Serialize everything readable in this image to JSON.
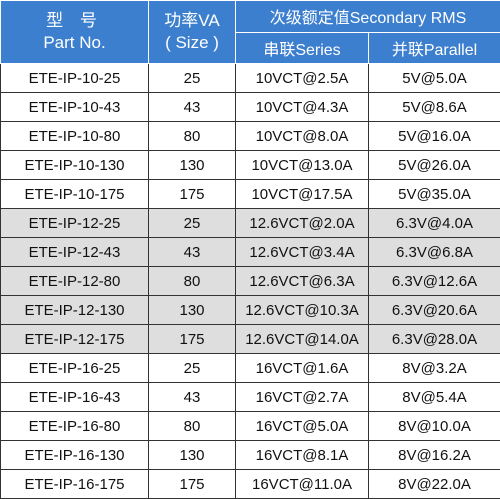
{
  "header": {
    "model_cn": "型  号",
    "model_en": "Part No.",
    "power_cn": "功率VA",
    "power_en": "( Size )",
    "secondary_title": "次级额定值Secondary RMS",
    "series_label": "串联Series",
    "parallel_label": "并联Parallel"
  },
  "rows": [
    {
      "part": "ETE-IP-10-25",
      "va": "25",
      "series": "10VCT@2.5A",
      "parallel": "5V@5.0A",
      "shaded": false
    },
    {
      "part": "ETE-IP-10-43",
      "va": "43",
      "series": "10VCT@4.3A",
      "parallel": "5V@8.6A",
      "shaded": false
    },
    {
      "part": "ETE-IP-10-80",
      "va": "80",
      "series": "10VCT@8.0A",
      "parallel": "5V@16.0A",
      "shaded": false
    },
    {
      "part": "ETE-IP-10-130",
      "va": "130",
      "series": "10VCT@13.0A",
      "parallel": "5V@26.0A",
      "shaded": false
    },
    {
      "part": "ETE-IP-10-175",
      "va": "175",
      "series": "10VCT@17.5A",
      "parallel": "5V@35.0A",
      "shaded": false
    },
    {
      "part": "ETE-IP-12-25",
      "va": "25",
      "series": "12.6VCT@2.0A",
      "parallel": "6.3V@4.0A",
      "shaded": true
    },
    {
      "part": "ETE-IP-12-43",
      "va": "43",
      "series": "12.6VCT@3.4A",
      "parallel": "6.3V@6.8A",
      "shaded": true
    },
    {
      "part": "ETE-IP-12-80",
      "va": "80",
      "series": "12.6VCT@6.3A",
      "parallel": "6.3V@12.6A",
      "shaded": true
    },
    {
      "part": "ETE-IP-12-130",
      "va": "130",
      "series": "12.6VCT@10.3A",
      "parallel": "6.3V@20.6A",
      "shaded": true
    },
    {
      "part": "ETE-IP-12-175",
      "va": "175",
      "series": "12.6VCT@14.0A",
      "parallel": "6.3V@28.0A",
      "shaded": true
    },
    {
      "part": "ETE-IP-16-25",
      "va": "25",
      "series": "16VCT@1.6A",
      "parallel": "8V@3.2A",
      "shaded": false
    },
    {
      "part": "ETE-IP-16-43",
      "va": "43",
      "series": "16VCT@2.7A",
      "parallel": "8V@5.4A",
      "shaded": false
    },
    {
      "part": "ETE-IP-16-80",
      "va": "80",
      "series": "16VCT@5.0A",
      "parallel": "8V@10.0A",
      "shaded": false
    },
    {
      "part": "ETE-IP-16-130",
      "va": "130",
      "series": "16VCT@8.1A",
      "parallel": "8V@16.2A",
      "shaded": false
    },
    {
      "part": "ETE-IP-16-175",
      "va": "175",
      "series": "16VCT@11.0A",
      "parallel": "8V@22.0A",
      "shaded": false
    }
  ],
  "colors": {
    "header_bg": "#3d7fcf",
    "shaded_row_bg": "#dedede"
  }
}
